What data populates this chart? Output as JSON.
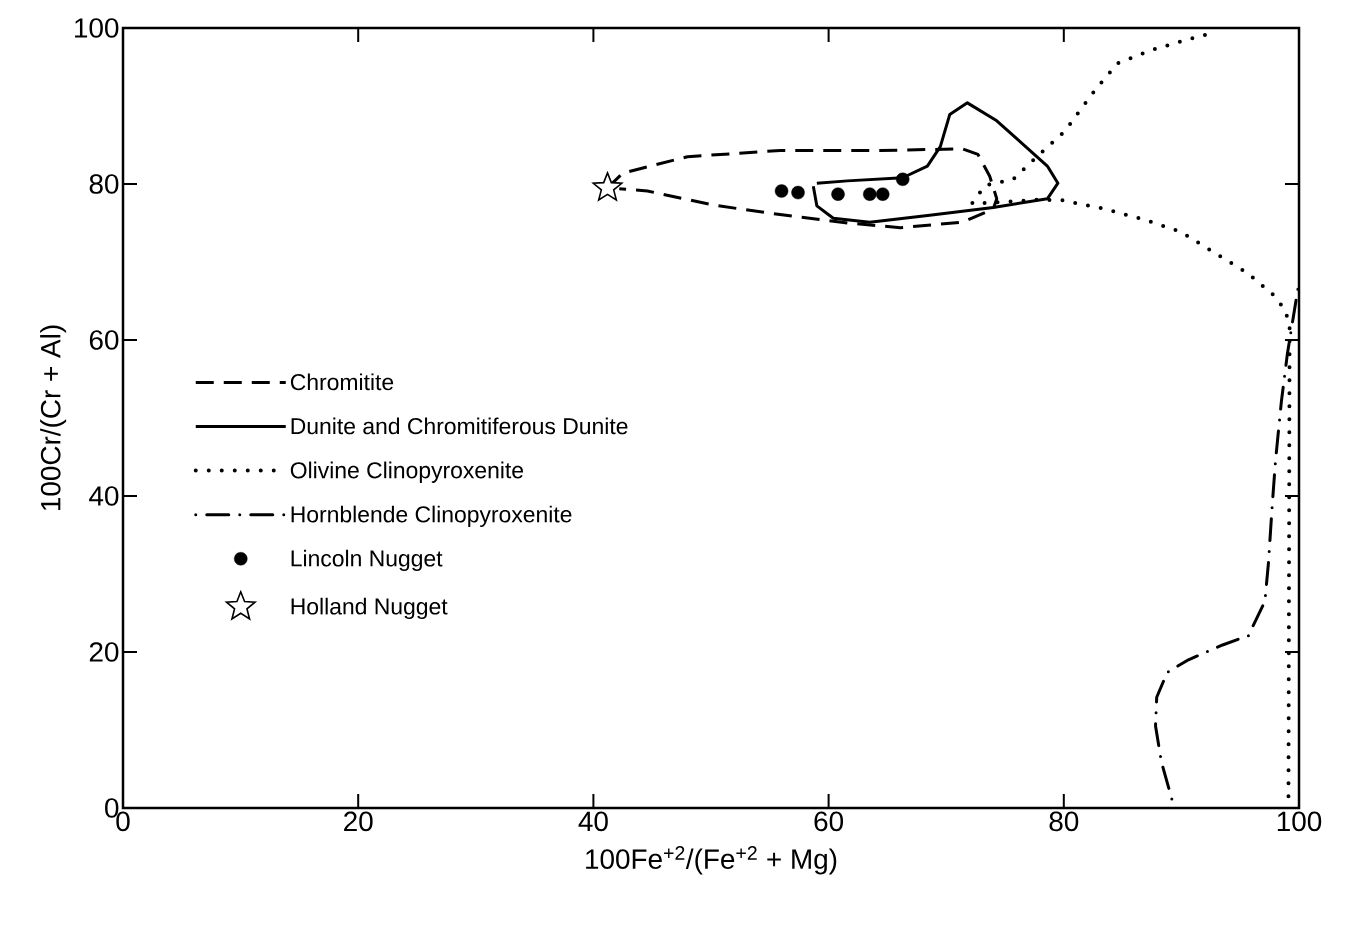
{
  "chart_data": {
    "type": "line",
    "xlabel": "100Fe$^{+2}$/(Fe$^{+2}$ + Mg)",
    "ylabel": "100Cr/(Cr + Al)",
    "xlim": [
      0,
      100
    ],
    "ylim": [
      0,
      100
    ],
    "xticks": [
      0,
      20,
      40,
      60,
      80,
      100
    ],
    "yticks": [
      0,
      20,
      40,
      60,
      80,
      100
    ],
    "grid": false,
    "legend": "left",
    "series": [
      {
        "name": "Chromitite",
        "line_style": "dashed",
        "color": "#000000",
        "x": [
          41.2,
          42.5,
          48,
          55.9,
          64.4,
          71.4,
          72.7,
          73.7,
          74.3,
          74,
          71.4,
          66.1,
          61.6,
          54.8,
          50.2,
          44.6,
          42.2
        ],
        "values": [
          79.5,
          81.4,
          83.5,
          84.3,
          84.3,
          84.5,
          83.8,
          81,
          78.1,
          76.8,
          75.1,
          74.4,
          75,
          76.3,
          77.3,
          79.1,
          79.4
        ]
      },
      {
        "name": "Dunite and Chromitiferous Dunite",
        "line_style": "solid",
        "color": "#000000",
        "x": [
          58.7,
          59,
          60.4,
          63.5,
          68.6,
          74,
          78.6,
          79.5,
          78.6,
          74.3,
          71.8,
          70.3,
          69.5,
          68.4,
          66.3,
          61.6,
          59
        ],
        "values": [
          79.7,
          77.2,
          75.6,
          75.1,
          76,
          77,
          78.1,
          80.1,
          82.3,
          88.1,
          90.4,
          88.9,
          84.8,
          82.3,
          80.8,
          80.4,
          80.1
        ]
      },
      {
        "name": "Olivine Clinopyroxenite",
        "line_style": "dotted",
        "color": "#000000",
        "x": [
          92,
          90.5,
          87.3,
          84.6,
          82.8,
          81.8,
          80.1,
          78,
          75.7,
          73.3,
          72.2,
          75,
          78,
          79.9,
          83.2,
          86.7,
          89.9,
          92.7,
          95.6,
          97.8,
          98.8,
          99.2,
          99.1
        ],
        "values": [
          99.1,
          98.5,
          97.1,
          95.5,
          92.3,
          90.3,
          86.8,
          83.9,
          80.6,
          79.8,
          77.5,
          77.7,
          78,
          77.9,
          76.9,
          75.5,
          73.9,
          71.3,
          68.6,
          65.8,
          63.9,
          61.9,
          0
        ]
      },
      {
        "name": "Hornblende Clinopyroxenite",
        "line_style": "dashdot",
        "color": "#000000",
        "x": [
          99.9,
          99.5,
          99,
          98.5,
          98,
          97.7,
          97.4,
          97.1,
          95.7,
          93.5,
          90.6,
          88.8,
          87.9,
          87.8,
          88.3,
          89.4
        ],
        "values": [
          66.5,
          62.8,
          58.1,
          52.1,
          44.5,
          38.3,
          31.4,
          26.5,
          22.1,
          20.9,
          19,
          17.4,
          14.2,
          10.5,
          5.9,
          0
        ]
      },
      {
        "name": "Lincoln Nugget",
        "type": "scatter",
        "marker": "circle",
        "color": "#000000",
        "x": [
          56,
          57.4,
          60.8,
          63.5,
          64.6,
          66.3
        ],
        "values": [
          79.1,
          78.9,
          78.7,
          78.7,
          78.7,
          80.6
        ]
      },
      {
        "name": "Holland Nugget",
        "type": "scatter",
        "marker": "star",
        "color": "#000000",
        "x": [
          41.2
        ],
        "values": [
          79.5
        ]
      }
    ]
  }
}
